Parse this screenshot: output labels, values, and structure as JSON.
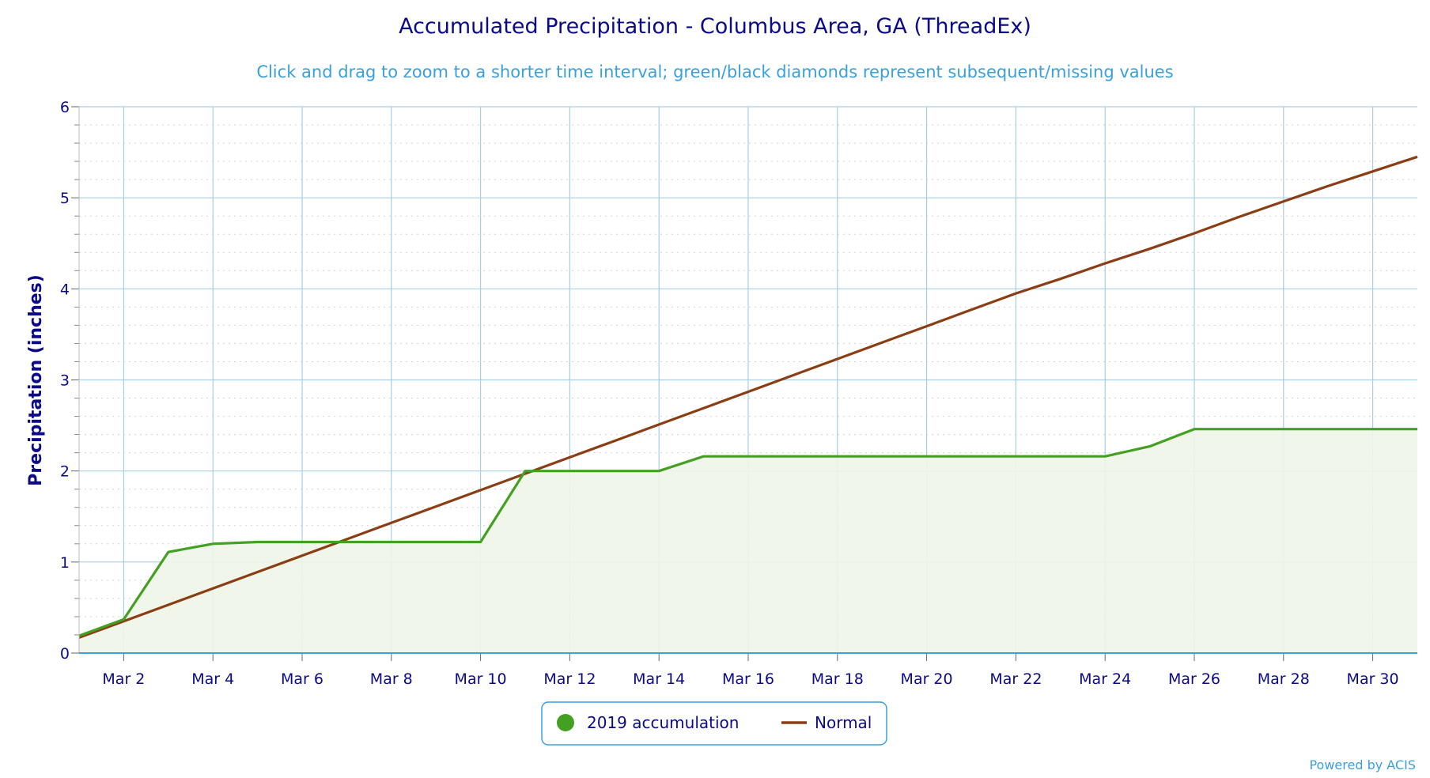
{
  "colors": {
    "accumulation": "#44a022",
    "accumulation_fill": "#eef5e8",
    "normal": "#8b3e14",
    "grid": "#a7cfe4",
    "minor_grid": "#d2d2d2",
    "text": "#0b0b8a",
    "accent": "#3aa0dc"
  },
  "legend": {
    "items": [
      {
        "label": "2019 accumulation",
        "marker": "circle"
      },
      {
        "label": "Normal",
        "marker": "line"
      }
    ]
  },
  "credit": "Powered by ACIS",
  "chart_data": {
    "type": "area",
    "title": "Accumulated Precipitation - Columbus Area, GA (ThreadEx)",
    "subtitle": "Click and drag to zoom to a shorter time interval; green/black diamonds represent subsequent/missing values",
    "xlabel": "",
    "ylabel": "Precipitation (inches)",
    "x_range": [
      "Mar 1",
      "Mar 31"
    ],
    "ylim": [
      0,
      6
    ],
    "y_ticks": [
      0,
      1,
      2,
      3,
      4,
      5,
      6
    ],
    "x_ticks": [
      "Mar 2",
      "Mar 4",
      "Mar 6",
      "Mar 8",
      "Mar 10",
      "Mar 12",
      "Mar 14",
      "Mar 16",
      "Mar 18",
      "Mar 20",
      "Mar 22",
      "Mar 24",
      "Mar 26",
      "Mar 28",
      "Mar 30"
    ],
    "grid": true,
    "legend_position": "bottom-center",
    "x": [
      "Mar 1",
      "Mar 2",
      "Mar 3",
      "Mar 4",
      "Mar 5",
      "Mar 6",
      "Mar 7",
      "Mar 8",
      "Mar 9",
      "Mar 10",
      "Mar 11",
      "Mar 12",
      "Mar 13",
      "Mar 14",
      "Mar 15",
      "Mar 16",
      "Mar 17",
      "Mar 18",
      "Mar 19",
      "Mar 20",
      "Mar 21",
      "Mar 22",
      "Mar 23",
      "Mar 24",
      "Mar 25",
      "Mar 26",
      "Mar 27",
      "Mar 28",
      "Mar 29",
      "Mar 30",
      "Mar 31"
    ],
    "series": [
      {
        "name": "2019 accumulation",
        "type": "area",
        "values": [
          0.19,
          0.37,
          1.11,
          1.2,
          1.22,
          1.22,
          1.22,
          1.22,
          1.22,
          1.22,
          2.0,
          2.0,
          2.0,
          2.0,
          2.16,
          2.16,
          2.16,
          2.16,
          2.16,
          2.16,
          2.16,
          2.16,
          2.16,
          2.16,
          2.27,
          2.46,
          2.46,
          2.46,
          2.46,
          2.46,
          2.46
        ]
      },
      {
        "name": "Normal",
        "type": "line",
        "values": [
          0.17,
          0.35,
          0.53,
          0.71,
          0.89,
          1.07,
          1.25,
          1.43,
          1.61,
          1.79,
          1.97,
          2.15,
          2.33,
          2.51,
          2.69,
          2.87,
          3.05,
          3.23,
          3.41,
          3.59,
          3.77,
          3.95,
          4.11,
          4.28,
          4.44,
          4.61,
          4.79,
          4.96,
          5.13,
          5.29,
          5.45
        ]
      }
    ]
  }
}
